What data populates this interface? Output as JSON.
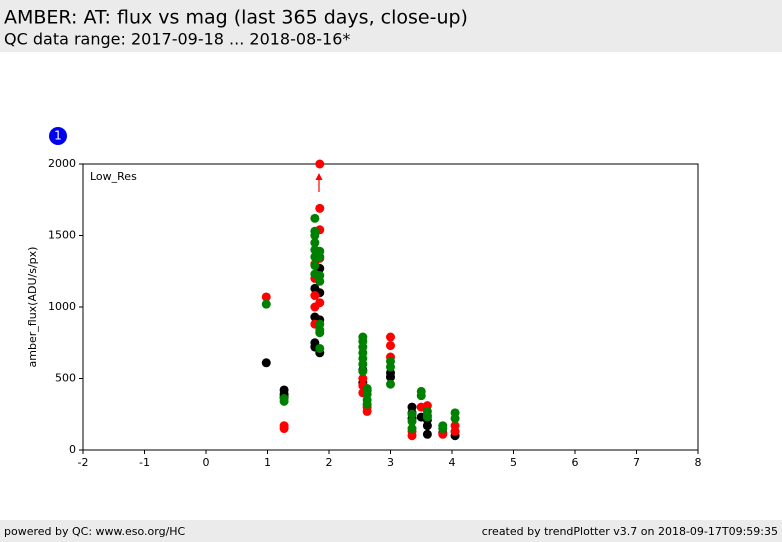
{
  "header": {
    "title": "AMBER: AT: flux vs mag (last 365 days, close-up)",
    "subtitle": "QC data range: 2017-09-18 ... 2018-08-16*"
  },
  "badge": "1",
  "chart_data": {
    "type": "scatter",
    "annotation": "Low_Res",
    "y_label": "amber_flux(ADU/s/px)",
    "xlim": [
      -2,
      8
    ],
    "xticks": [
      -2,
      -1,
      0,
      1,
      2,
      3,
      4,
      5,
      6,
      7,
      8
    ],
    "ylim": [
      0,
      2000
    ],
    "yticks": [
      0,
      500,
      1000,
      1500,
      2000
    ],
    "grid": false,
    "series": [
      {
        "color": "#000000",
        "x": [
          0.98,
          1.27,
          1.27,
          1.27,
          1.77,
          1.77,
          1.77,
          1.77,
          1.85,
          1.85,
          1.85,
          1.85,
          2.55,
          2.55,
          2.62,
          3.0,
          3.0,
          3.35,
          3.35,
          3.35,
          3.5,
          3.6,
          3.6,
          3.6,
          3.85,
          4.05,
          4.05
        ],
        "values": [
          610,
          420,
          390,
          370,
          750,
          720,
          930,
          1130,
          1270,
          1100,
          910,
          680,
          470,
          560,
          420,
          510,
          540,
          300,
          260,
          220,
          230,
          110,
          170,
          210,
          120,
          100,
          130
        ]
      },
      {
        "color": "#ff0000",
        "x": [
          0.98,
          1.27,
          1.27,
          1.77,
          1.77,
          1.77,
          1.77,
          1.77,
          1.85,
          1.85,
          1.85,
          1.85,
          1.85,
          2.55,
          2.55,
          2.55,
          2.62,
          2.62,
          3.0,
          3.0,
          3.0,
          3.35,
          3.35,
          3.5,
          3.6,
          3.6,
          3.85,
          4.05,
          4.05
        ],
        "values": [
          1070,
          170,
          150,
          880,
          1000,
          1080,
          1200,
          1300,
          2000,
          1690,
          1540,
          1340,
          1030,
          400,
          450,
          500,
          270,
          300,
          790,
          730,
          650,
          100,
          130,
          300,
          310,
          240,
          110,
          170,
          130
        ]
      },
      {
        "color": "#008000",
        "x": [
          0.98,
          1.27,
          1.27,
          1.77,
          1.77,
          1.77,
          1.77,
          1.77,
          1.77,
          1.77,
          1.77,
          1.85,
          1.85,
          1.85,
          1.85,
          1.85,
          1.85,
          1.85,
          1.85,
          2.55,
          2.55,
          2.55,
          2.55,
          2.55,
          2.55,
          2.55,
          2.62,
          2.62,
          2.62,
          2.62,
          3.0,
          3.0,
          3.0,
          3.35,
          3.35,
          3.35,
          3.5,
          3.5,
          3.6,
          3.6,
          3.85,
          3.85,
          4.05,
          4.05
        ],
        "values": [
          1020,
          340,
          360,
          1620,
          1530,
          1500,
          1450,
          1400,
          1350,
          1290,
          1230,
          1390,
          1350,
          1220,
          1180,
          880,
          840,
          820,
          710,
          790,
          760,
          720,
          680,
          640,
          600,
          550,
          430,
          390,
          350,
          320,
          620,
          580,
          460,
          250,
          200,
          150,
          410,
          380,
          270,
          230,
          170,
          150,
          260,
          220
        ]
      }
    ]
  },
  "footer": {
    "left": "powered by QC: www.eso.org/HC",
    "right": "created by trendPlotter v3.7 on 2018-09-17T09:59:35"
  }
}
